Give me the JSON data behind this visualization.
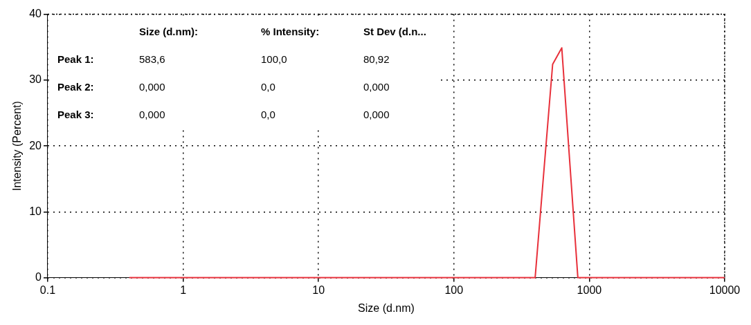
{
  "chart_data": {
    "type": "line",
    "xlabel": "Size (d.nm)",
    "ylabel": "Intensity (Percent)",
    "x": [
      0.4,
      398,
      536,
      626,
      823,
      10000
    ],
    "series": [
      {
        "color": "#e8303a",
        "values": [
          0,
          0,
          32.4,
          34.9,
          0,
          0
        ]
      }
    ],
    "xlim": [
      0.1,
      10000
    ],
    "xticks": [
      0.1,
      1,
      10,
      100,
      1000,
      10000
    ],
    "ylim": [
      0,
      40
    ],
    "yticks": [
      0,
      10,
      20,
      30,
      40
    ],
    "log": "x",
    "grid": true,
    "legend": false,
    "marker": "none",
    "line_style": "solid",
    "annotations": [
      "Size (d.nm):",
      "% Intensity:",
      "St Dev (d.n...",
      "Peak 1:",
      "583,6",
      "100,0",
      "80,92",
      "Peak 2:",
      "0,000",
      "0,0",
      "0,000",
      "Peak 3:",
      "0,000",
      "0,0",
      "0,000"
    ]
  }
}
